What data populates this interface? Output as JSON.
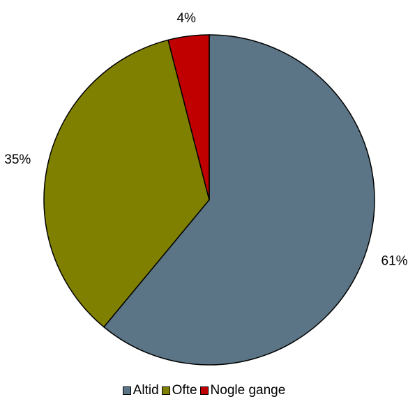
{
  "chart_data": {
    "type": "pie",
    "start_angle_deg": 0,
    "direction": "clockwise",
    "legend_position": "bottom",
    "slices": [
      {
        "label": "Altid",
        "value": 61,
        "display": "61%",
        "color": "#5b7586"
      },
      {
        "label": "Ofte",
        "value": 35,
        "display": "35%",
        "color": "#808000"
      },
      {
        "label": "Nogle gange",
        "value": 4,
        "display": "4%",
        "color": "#c00000"
      }
    ]
  }
}
